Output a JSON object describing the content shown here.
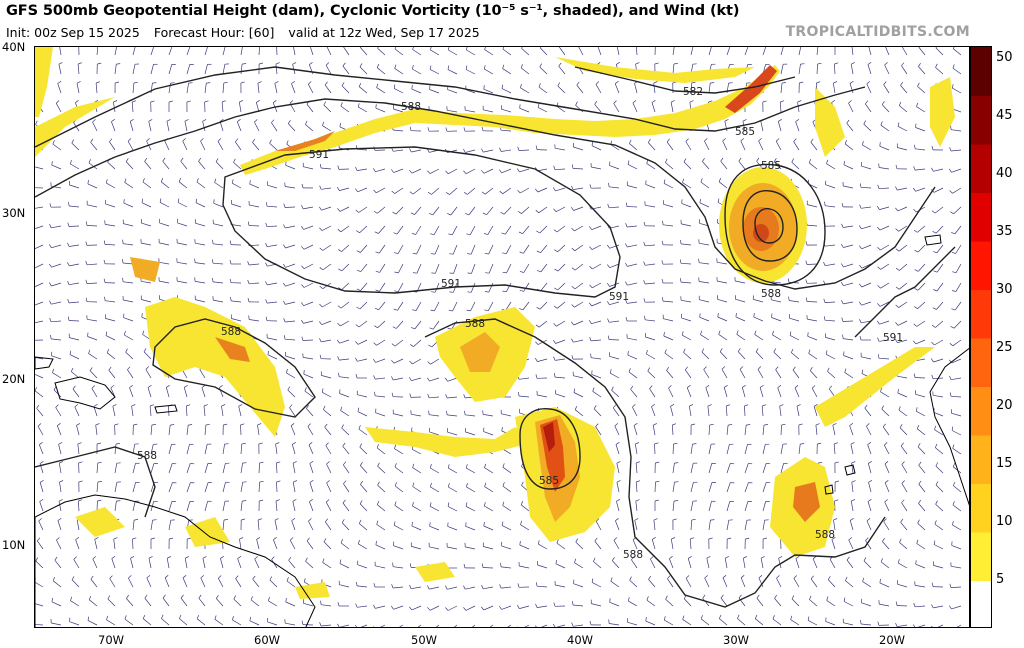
{
  "header": {
    "title": "GFS 500mb Geopotential Height (dam), Cyclonic Vorticity (10⁻⁵ s⁻¹, shaded), and Wind (kt)",
    "init": "Init: 00z Sep 15 2025",
    "forecast_hour": "Forecast Hour: [60]",
    "valid": "valid at 12z Wed, Sep 17 2025",
    "source": "TROPICALTIDBITS.COM"
  },
  "axes": {
    "lat_labels": [
      "40N",
      "30N",
      "20N",
      "10N"
    ],
    "lon_labels": [
      "70W",
      "60W",
      "50W",
      "40W",
      "30W",
      "20W"
    ]
  },
  "contour_labels": {
    "c1": "588",
    "c2": "591",
    "c3": "582",
    "c4": "585",
    "c5": "585",
    "c6": "588",
    "c7": "591",
    "c8": "591",
    "c9": "588",
    "c10": "588",
    "c11": "585",
    "c12": "588",
    "c13": "588",
    "c14": "588",
    "c15": "591"
  },
  "colorbar": {
    "ticks": [
      "50",
      "45",
      "40",
      "35",
      "30",
      "25",
      "20",
      "15",
      "10",
      "5"
    ],
    "colors": [
      "#ffffff",
      "#ffee33",
      "#ffd21f",
      "#ffb21a",
      "#ff8e14",
      "#ff650e",
      "#ff3a08",
      "#ff1500",
      "#e00000",
      "#b40000",
      "#880000",
      "#5c0000"
    ]
  },
  "colors": {
    "vort_light": "#f7e531",
    "vort_mid": "#f4a024",
    "vort_high": "#e25114",
    "vort_core": "#b51d0c",
    "contour": "#222222",
    "barb": "#3a3a7a",
    "coast": "#000000"
  }
}
